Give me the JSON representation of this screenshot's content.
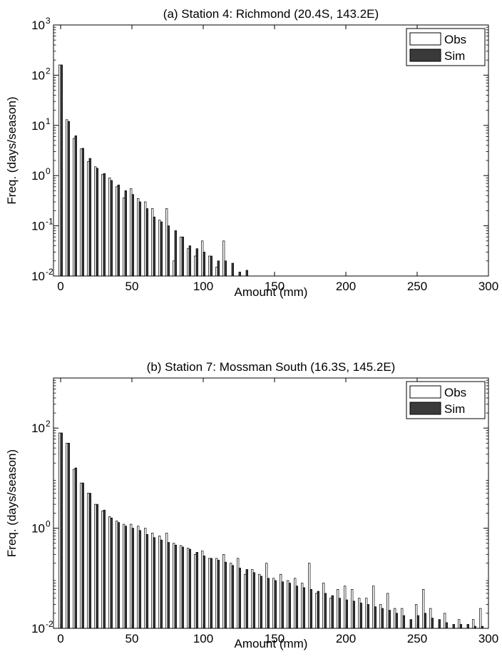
{
  "charts": [
    {
      "type": "bar",
      "title": "(a) Station 4: Richmond (20.4S, 143.2E)",
      "xlabel": "Amount (mm)",
      "ylabel": "Freq. (days/season)",
      "xlim": [
        -5,
        300
      ],
      "ylim": [
        0.01,
        1000
      ],
      "yscale": "log",
      "xticks": [
        "0",
        "50",
        "100",
        "150",
        "200",
        "250",
        "300"
      ],
      "yticks": [
        {
          "base": "10",
          "exp": "-2"
        },
        {
          "base": "10",
          "exp": "-1"
        },
        {
          "base": "10",
          "exp": "0"
        },
        {
          "base": "10",
          "exp": "1"
        },
        {
          "base": "10",
          "exp": "2"
        },
        {
          "base": "10",
          "exp": "3"
        }
      ],
      "legend_position": "top-right",
      "legend": [
        "Obs",
        "Sim"
      ],
      "colors": {
        "obs": "#ffffff",
        "sim": "#3a3a3a"
      },
      "x": [
        0,
        5,
        10,
        15,
        20,
        25,
        30,
        35,
        40,
        45,
        50,
        55,
        60,
        65,
        70,
        75,
        80,
        85,
        90,
        95,
        100,
        105,
        110,
        115,
        120,
        125,
        130
      ],
      "obs": [
        160,
        13,
        5.5,
        3.4,
        1.9,
        1.5,
        1.05,
        0.9,
        0.6,
        0.36,
        0.55,
        0.35,
        0.3,
        0.22,
        0.13,
        0.22,
        0.02,
        0.06,
        0.035,
        0.025,
        0.05,
        0.025,
        0.015,
        0.05,
        0,
        0,
        0
      ],
      "sim": [
        160,
        12,
        6.2,
        3.5,
        2.2,
        1.4,
        1.1,
        0.8,
        0.65,
        0.5,
        0.42,
        0.3,
        0.22,
        0.15,
        0.12,
        0.1,
        0.08,
        0.06,
        0.04,
        0.035,
        0.03,
        0.025,
        0.02,
        0.02,
        0.018,
        0.012,
        0.013
      ]
    },
    {
      "type": "bar",
      "title": "(b) Station 7: Mossman South (16.3S, 145.2E)",
      "xlabel": "Amount (mm)",
      "ylabel": "Freq. (days/season)",
      "xlim": [
        -5,
        300
      ],
      "ylim": [
        0.01,
        1000
      ],
      "yscale": "log",
      "xticks": [
        "0",
        "50",
        "100",
        "150",
        "200",
        "250",
        "300"
      ],
      "yticks": [
        {
          "base": "10",
          "exp": "-2"
        },
        {
          "base": "10",
          "exp": "0"
        },
        {
          "base": "10",
          "exp": "2"
        }
      ],
      "legend_position": "top-right",
      "legend": [
        "Obs",
        "Sim"
      ],
      "colors": {
        "obs": "#ffffff",
        "sim": "#3a3a3a"
      },
      "x": [
        0,
        5,
        10,
        15,
        20,
        25,
        30,
        35,
        40,
        45,
        50,
        55,
        60,
        65,
        70,
        75,
        80,
        85,
        90,
        95,
        100,
        105,
        110,
        115,
        120,
        125,
        130,
        135,
        140,
        145,
        150,
        155,
        160,
        165,
        170,
        175,
        180,
        185,
        190,
        195,
        200,
        205,
        210,
        215,
        220,
        225,
        230,
        235,
        240,
        245,
        250,
        255,
        260,
        265,
        270,
        275,
        280,
        285,
        290,
        295
      ],
      "obs": [
        80,
        50,
        15,
        8,
        5,
        3,
        2.2,
        1.7,
        1.4,
        1.2,
        1.2,
        1.1,
        1,
        0.8,
        0.7,
        0.8,
        0.5,
        0.45,
        0.4,
        0.3,
        0.35,
        0.25,
        0.25,
        0.3,
        0.2,
        0.25,
        0.12,
        0.15,
        0.12,
        0.2,
        0.1,
        0.12,
        0.09,
        0.1,
        0.08,
        0.2,
        0.05,
        0.08,
        0.04,
        0.06,
        0.07,
        0.06,
        0.04,
        0.04,
        0.07,
        0.03,
        0.05,
        0.025,
        0.025,
        0,
        0.03,
        0.06,
        0.025,
        0,
        0.02,
        0,
        0.015,
        0,
        0.015,
        0.025
      ],
      "sim": [
        80,
        50,
        16,
        8,
        5,
        3,
        2.3,
        1.6,
        1.3,
        1.1,
        1,
        0.9,
        0.75,
        0.65,
        0.58,
        0.52,
        0.46,
        0.42,
        0.38,
        0.33,
        0.28,
        0.25,
        0.23,
        0.21,
        0.18,
        0.16,
        0.15,
        0.13,
        0.11,
        0.1,
        0.09,
        0.085,
        0.08,
        0.07,
        0.065,
        0.06,
        0.055,
        0.05,
        0.045,
        0.04,
        0.037,
        0.035,
        0.032,
        0.03,
        0.027,
        0.025,
        0.023,
        0.02,
        0.018,
        0.015,
        0.018,
        0.02,
        0.016,
        0.015,
        0.013,
        0.012,
        0.012,
        0.012,
        0.011,
        0.011
      ]
    }
  ]
}
